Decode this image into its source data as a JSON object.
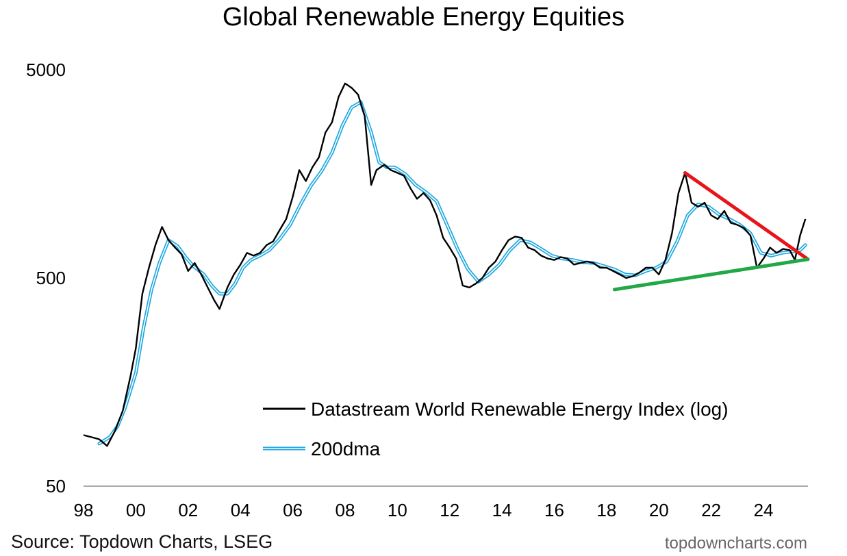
{
  "chart_data": {
    "type": "line",
    "title": "Global Renewable Energy Equities",
    "source": "Source: Topdown Charts, LSEG",
    "brand": "topdowncharts.com",
    "y_scale": "log",
    "ylim": [
      50,
      5000
    ],
    "yticks": [
      50,
      500,
      5000
    ],
    "ytick_labels": [
      "50",
      "500",
      "5000"
    ],
    "xlim": [
      1998.0,
      2025.7
    ],
    "xticks": [
      1998,
      2000,
      2002,
      2004,
      2006,
      2008,
      2010,
      2012,
      2014,
      2016,
      2018,
      2020,
      2022,
      2024
    ],
    "xtick_labels": [
      "98",
      "00",
      "02",
      "04",
      "06",
      "08",
      "10",
      "12",
      "14",
      "16",
      "18",
      "20",
      "22",
      "24"
    ],
    "legend_position": "lower-right",
    "series": [
      {
        "name": "Datastream World Renewable Energy Index (log)",
        "color": "#000000",
        "points": [
          [
            1998.0,
            88
          ],
          [
            1998.3,
            86
          ],
          [
            1998.6,
            84
          ],
          [
            1998.9,
            78
          ],
          [
            1999.2,
            92
          ],
          [
            1999.5,
            115
          ],
          [
            1999.8,
            170
          ],
          [
            2000.0,
            230
          ],
          [
            2000.25,
            420
          ],
          [
            2000.5,
            560
          ],
          [
            2000.75,
            720
          ],
          [
            2001.0,
            880
          ],
          [
            2001.25,
            760
          ],
          [
            2001.5,
            700
          ],
          [
            2001.75,
            650
          ],
          [
            2002.0,
            540
          ],
          [
            2002.25,
            590
          ],
          [
            2002.5,
            520
          ],
          [
            2002.75,
            450
          ],
          [
            2003.0,
            390
          ],
          [
            2003.2,
            355
          ],
          [
            2003.5,
            450
          ],
          [
            2003.75,
            520
          ],
          [
            2004.0,
            580
          ],
          [
            2004.25,
            660
          ],
          [
            2004.5,
            640
          ],
          [
            2004.75,
            660
          ],
          [
            2005.0,
            720
          ],
          [
            2005.25,
            750
          ],
          [
            2005.5,
            850
          ],
          [
            2005.75,
            960
          ],
          [
            2006.0,
            1230
          ],
          [
            2006.25,
            1650
          ],
          [
            2006.5,
            1460
          ],
          [
            2006.75,
            1700
          ],
          [
            2007.0,
            1900
          ],
          [
            2007.25,
            2500
          ],
          [
            2007.5,
            2800
          ],
          [
            2007.75,
            3700
          ],
          [
            2008.0,
            4300
          ],
          [
            2008.25,
            4100
          ],
          [
            2008.5,
            3800
          ],
          [
            2008.75,
            3000
          ],
          [
            2009.0,
            1400
          ],
          [
            2009.2,
            1650
          ],
          [
            2009.5,
            1750
          ],
          [
            2009.75,
            1650
          ],
          [
            2010.0,
            1600
          ],
          [
            2010.25,
            1550
          ],
          [
            2010.5,
            1350
          ],
          [
            2010.75,
            1200
          ],
          [
            2011.0,
            1280
          ],
          [
            2011.25,
            1180
          ],
          [
            2011.5,
            1000
          ],
          [
            2011.75,
            780
          ],
          [
            2012.0,
            700
          ],
          [
            2012.25,
            620
          ],
          [
            2012.5,
            460
          ],
          [
            2012.75,
            450
          ],
          [
            2013.0,
            470
          ],
          [
            2013.25,
            500
          ],
          [
            2013.5,
            560
          ],
          [
            2013.75,
            600
          ],
          [
            2014.0,
            680
          ],
          [
            2014.25,
            760
          ],
          [
            2014.5,
            790
          ],
          [
            2014.75,
            780
          ],
          [
            2015.0,
            700
          ],
          [
            2015.25,
            680
          ],
          [
            2015.5,
            640
          ],
          [
            2015.75,
            620
          ],
          [
            2016.0,
            610
          ],
          [
            2016.25,
            630
          ],
          [
            2016.5,
            620
          ],
          [
            2016.75,
            580
          ],
          [
            2017.0,
            590
          ],
          [
            2017.25,
            600
          ],
          [
            2017.5,
            590
          ],
          [
            2017.75,
            560
          ],
          [
            2018.0,
            560
          ],
          [
            2018.25,
            540
          ],
          [
            2018.5,
            520
          ],
          [
            2018.75,
            500
          ],
          [
            2019.0,
            510
          ],
          [
            2019.25,
            530
          ],
          [
            2019.5,
            560
          ],
          [
            2019.75,
            560
          ],
          [
            2020.0,
            520
          ],
          [
            2020.25,
            610
          ],
          [
            2020.5,
            820
          ],
          [
            2020.75,
            1280
          ],
          [
            2021.0,
            1600
          ],
          [
            2021.25,
            1150
          ],
          [
            2021.5,
            1100
          ],
          [
            2021.75,
            1150
          ],
          [
            2022.0,
            1000
          ],
          [
            2022.25,
            960
          ],
          [
            2022.5,
            1050
          ],
          [
            2022.75,
            920
          ],
          [
            2023.0,
            900
          ],
          [
            2023.25,
            870
          ],
          [
            2023.5,
            800
          ],
          [
            2023.75,
            560
          ],
          [
            2024.0,
            620
          ],
          [
            2024.25,
            700
          ],
          [
            2024.5,
            660
          ],
          [
            2024.75,
            690
          ],
          [
            2025.0,
            680
          ],
          [
            2025.2,
            610
          ],
          [
            2025.4,
            800
          ],
          [
            2025.6,
            960
          ]
        ]
      },
      {
        "name": "200dma",
        "color": "#1fa8e0",
        "points": [
          [
            1998.6,
            80
          ],
          [
            1999.0,
            86
          ],
          [
            1999.3,
            97
          ],
          [
            1999.6,
            120
          ],
          [
            2000.0,
            175
          ],
          [
            2000.3,
            290
          ],
          [
            2000.6,
            440
          ],
          [
            2000.9,
            590
          ],
          [
            2001.25,
            760
          ],
          [
            2001.6,
            710
          ],
          [
            2001.9,
            630
          ],
          [
            2002.2,
            570
          ],
          [
            2002.6,
            520
          ],
          [
            2002.9,
            460
          ],
          [
            2003.2,
            420
          ],
          [
            2003.5,
            420
          ],
          [
            2003.8,
            470
          ],
          [
            2004.1,
            560
          ],
          [
            2004.4,
            610
          ],
          [
            2004.75,
            640
          ],
          [
            2005.1,
            680
          ],
          [
            2005.5,
            770
          ],
          [
            2005.9,
            900
          ],
          [
            2006.3,
            1130
          ],
          [
            2006.7,
            1390
          ],
          [
            2007.1,
            1630
          ],
          [
            2007.5,
            2000
          ],
          [
            2007.9,
            2700
          ],
          [
            2008.25,
            3300
          ],
          [
            2008.6,
            3500
          ],
          [
            2009.0,
            2500
          ],
          [
            2009.3,
            1800
          ],
          [
            2009.6,
            1700
          ],
          [
            2009.9,
            1700
          ],
          [
            2010.3,
            1580
          ],
          [
            2010.7,
            1400
          ],
          [
            2011.1,
            1290
          ],
          [
            2011.5,
            1170
          ],
          [
            2011.9,
            900
          ],
          [
            2012.3,
            690
          ],
          [
            2012.7,
            550
          ],
          [
            2013.1,
            480
          ],
          [
            2013.5,
            520
          ],
          [
            2013.9,
            580
          ],
          [
            2014.3,
            680
          ],
          [
            2014.7,
            760
          ],
          [
            2015.1,
            740
          ],
          [
            2015.5,
            690
          ],
          [
            2015.9,
            640
          ],
          [
            2016.3,
            620
          ],
          [
            2016.7,
            610
          ],
          [
            2017.1,
            595
          ],
          [
            2017.5,
            590
          ],
          [
            2017.9,
            570
          ],
          [
            2018.3,
            550
          ],
          [
            2018.7,
            520
          ],
          [
            2019.1,
            515
          ],
          [
            2019.5,
            540
          ],
          [
            2019.9,
            560
          ],
          [
            2020.3,
            600
          ],
          [
            2020.7,
            750
          ],
          [
            2021.1,
            1000
          ],
          [
            2021.5,
            1130
          ],
          [
            2021.9,
            1100
          ],
          [
            2022.3,
            1010
          ],
          [
            2022.7,
            960
          ],
          [
            2023.1,
            900
          ],
          [
            2023.5,
            820
          ],
          [
            2023.9,
            660
          ],
          [
            2024.3,
            640
          ],
          [
            2024.7,
            660
          ],
          [
            2025.1,
            670
          ],
          [
            2025.4,
            680
          ],
          [
            2025.6,
            720
          ]
        ]
      }
    ],
    "trendlines": [
      {
        "color": "#e8141b",
        "points": [
          [
            2021.0,
            1600
          ],
          [
            2025.7,
            615
          ]
        ]
      },
      {
        "color": "#22a846",
        "points": [
          [
            2018.3,
            440
          ],
          [
            2025.7,
            615
          ]
        ]
      }
    ]
  }
}
